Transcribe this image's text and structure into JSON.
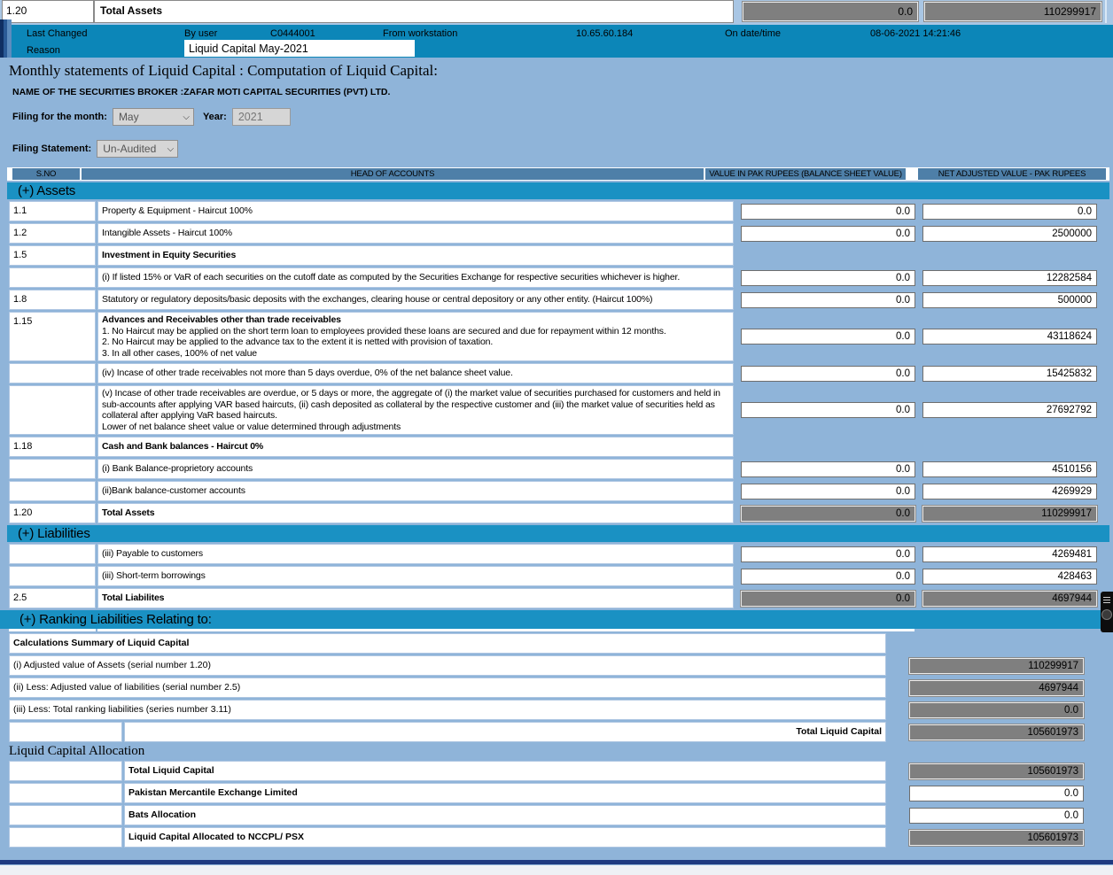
{
  "colors": {
    "page_bg": "#8fb4d9",
    "audit_band": "#0c86b8",
    "section_header": "#1a91c3",
    "column_header": "#4e7fa8",
    "disabled_value_box": "#7f7f7f",
    "frame_navy": "#0f2f63"
  },
  "top_row": {
    "sno": "1.20",
    "label": "Total Assets",
    "value": "0.0",
    "adjusted": "110299917"
  },
  "audit_band": {
    "last_changed_label": "Last Changed",
    "by_user_label": "By user",
    "user_id": "C0444001",
    "from_workstation_label": "From workstation",
    "workstation_ip": "10.65.60.184",
    "on_datetime_label": "On date/time",
    "datetime": "08-06-2021 14:21:46",
    "reason_label": "Reason",
    "reason_value": "Liquid Capital May-2021"
  },
  "form": {
    "title": "Monthly statements of Liquid Capital : Computation of Liquid Capital:",
    "broker": "NAME OF THE SECURITIES BROKER :ZAFAR MOTI CAPITAL SECURITIES (PVT) LTD.",
    "month_label": "Filing for the month:",
    "month_value": "May",
    "year_label": "Year:",
    "year_value": "2021",
    "statement_label": "Filing Statement:",
    "statement_value": "Un-Audited"
  },
  "table": {
    "headers": [
      "S.NO",
      "HEAD OF ACCOUNTS",
      "VALUE IN PAK RUPEES (BALANCE SHEET VALUE)",
      "NET ADJUSTED VALUE - PAK RUPEES"
    ],
    "sections": [
      {
        "title": "(+) Assets",
        "rows": [
          {
            "sno": "1.1",
            "lines": [
              "Property & Equipment - Haircut 100%"
            ],
            "bold_first": false,
            "value": "0.0",
            "adjusted": "0.0",
            "disabled": false,
            "no_inputs": false
          },
          {
            "sno": "1.2",
            "lines": [
              "Intangible Assets - Haircut 100%"
            ],
            "bold_first": false,
            "value": "0.0",
            "adjusted": "2500000",
            "disabled": false,
            "no_inputs": false
          },
          {
            "sno": "1.5",
            "lines": [
              "Investment in Equity Securities"
            ],
            "bold_first": true,
            "value": "",
            "adjusted": "",
            "disabled": false,
            "no_inputs": true
          },
          {
            "sno": "",
            "lines": [
              "(i) If listed 15% or VaR of each securities on the cutoff date as computed by the Securities Exchange for respective securities whichever is higher."
            ],
            "bold_first": false,
            "value": "0.0",
            "adjusted": "12282584",
            "disabled": false,
            "no_inputs": false
          },
          {
            "sno": "1.8",
            "lines": [
              "Statutory or regulatory deposits/basic deposits with the exchanges, clearing house or central depository or any other entity. (Haircut 100%)"
            ],
            "bold_first": false,
            "value": "0.0",
            "adjusted": "500000",
            "disabled": false,
            "no_inputs": false
          },
          {
            "sno": "1.15",
            "lines": [
              "Advances and Receivables other than trade receivables",
              "1. No Haircut may be applied on the short term loan to employees provided these loans are secured and due for repayment within 12 months.",
              "2. No Haircut may be applied to the advance tax to the extent it is netted with provision of taxation.",
              "3. In all other cases, 100% of net value"
            ],
            "bold_first": true,
            "value": "0.0",
            "adjusted": "43118624",
            "disabled": false,
            "no_inputs": false
          },
          {
            "sno": "",
            "lines": [
              "(iv) Incase of other trade receivables not more than 5 days overdue, 0% of the net balance sheet value."
            ],
            "bold_first": false,
            "value": "0.0",
            "adjusted": "15425832",
            "disabled": false,
            "no_inputs": false
          },
          {
            "sno": "",
            "lines": [
              "(v) Incase of other trade receivables are overdue, or 5 days or more, the aggregate of (i) the market value of securities purchased for customers and held in sub-accounts after applying VAR based haircuts, (ii) cash deposited as collateral by the respective customer and (iii) the market value of securities held as collateral after applying VaR based haircuts.",
              "Lower of net balance sheet value or value determined through adjustments"
            ],
            "bold_first": false,
            "value": "0.0",
            "adjusted": "27692792",
            "disabled": false,
            "no_inputs": false
          },
          {
            "sno": "1.18",
            "lines": [
              "Cash and Bank balances - Haircut 0%"
            ],
            "bold_first": true,
            "value": "",
            "adjusted": "",
            "disabled": false,
            "no_inputs": true
          },
          {
            "sno": "",
            "lines": [
              "(i) Bank Balance-proprietory accounts"
            ],
            "bold_first": false,
            "value": "0.0",
            "adjusted": "4510156",
            "disabled": false,
            "no_inputs": false
          },
          {
            "sno": "",
            "lines": [
              "(ii)Bank balance-customer accounts"
            ],
            "bold_first": false,
            "value": "0.0",
            "adjusted": "4269929",
            "disabled": false,
            "no_inputs": false
          },
          {
            "sno": "1.20",
            "lines": [
              "Total Assets"
            ],
            "bold_first": true,
            "value": "0.0",
            "adjusted": "110299917",
            "disabled": true,
            "no_inputs": false
          }
        ]
      },
      {
        "title": "(+) Liabilities",
        "rows": [
          {
            "sno": "",
            "lines": [
              "(iii) Payable to customers"
            ],
            "bold_first": false,
            "value": "0.0",
            "adjusted": "4269481",
            "disabled": false,
            "no_inputs": false
          },
          {
            "sno": "",
            "lines": [
              "(iii) Short-term borrowings"
            ],
            "bold_first": false,
            "value": "0.0",
            "adjusted": "428463",
            "disabled": false,
            "no_inputs": false
          },
          {
            "sno": "2.5",
            "lines": [
              "Total Liabilites"
            ],
            "bold_first": true,
            "value": "0.0",
            "adjusted": "4697944",
            "disabled": true,
            "no_inputs": false
          }
        ]
      },
      {
        "title": "(+) Ranking Liabilities Relating to:",
        "rows": []
      }
    ]
  },
  "summary": {
    "title": "Calculations Summary of Liquid Capital",
    "rows": [
      {
        "label": "(i) Adjusted value of Assets (serial number 1.20)",
        "value": "110299917"
      },
      {
        "label": "(ii) Less: Adjusted value of liabilities (serial number 2.5)",
        "value": "4697944"
      },
      {
        "label": "(iii) Less: Total ranking liabilities (series number 3.11)",
        "value": "0.0"
      }
    ],
    "total_label": "Total Liquid Capital",
    "total_value": "105601973"
  },
  "allocation": {
    "heading": "Liquid Capital Allocation",
    "rows": [
      {
        "label": "Total Liquid Capital",
        "value": "105601973",
        "disabled": true
      },
      {
        "label": "Pakistan Mercantile Exchange Limited",
        "value": "0.0",
        "disabled": false
      },
      {
        "label": "Bats Allocation",
        "value": "0.0",
        "disabled": false
      },
      {
        "label": "Liquid Capital Allocated to NCCPL/ PSX",
        "value": "105601973",
        "disabled": true
      }
    ]
  }
}
